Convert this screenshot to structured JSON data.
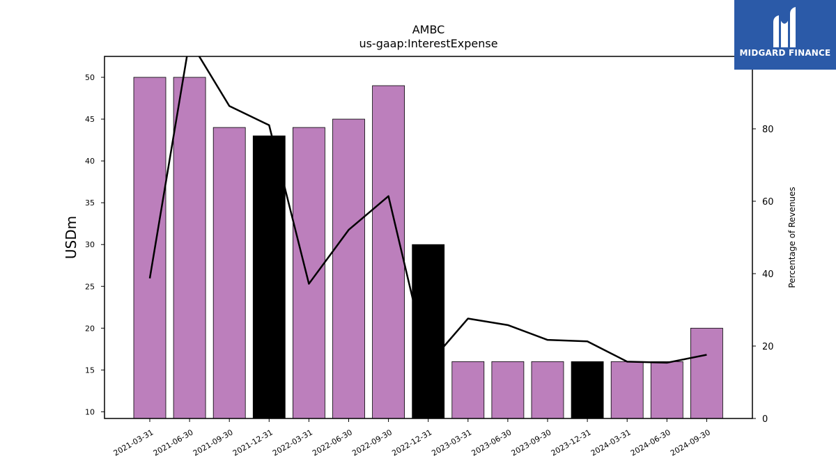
{
  "chart_data": {
    "type": "bar",
    "title": "AMBC",
    "subtitle": "us-gaap:InterestExpense",
    "ylabel": "USDm",
    "y2label": "Percentage of Revenues",
    "ylim": [
      9.2,
      52.5
    ],
    "y2lim": [
      0,
      100
    ],
    "yticks": [
      10,
      15,
      20,
      25,
      30,
      35,
      40,
      45,
      50
    ],
    "y2ticks": [
      0,
      20,
      40,
      60,
      80
    ],
    "categories": [
      "2021-03-31",
      "2021-06-30",
      "2021-09-30",
      "2021-12-31",
      "2022-03-31",
      "2022-06-30",
      "2022-09-30",
      "2022-12-31",
      "2023-03-31",
      "2023-06-30",
      "2023-09-30",
      "2023-12-31",
      "2024-03-31",
      "2024-06-30",
      "2024-09-30"
    ],
    "values": [
      50,
      50,
      44,
      43,
      44,
      45,
      49,
      30,
      16,
      16,
      16,
      16,
      16,
      16,
      20
    ],
    "bar_colors": [
      "#bc7fbc",
      "#bc7fbc",
      "#bc7fbc",
      "#000000",
      "#bc7fbc",
      "#bc7fbc",
      "#bc7fbc",
      "#000000",
      "#bc7fbc",
      "#bc7fbc",
      "#bc7fbc",
      "#000000",
      "#bc7fbc",
      "#bc7fbc",
      "#bc7fbc"
    ],
    "line_series": [
      38.7,
      104.4,
      86.3,
      81.0,
      37.2,
      52.1,
      61.4,
      14.9,
      27.6,
      25.8,
      21.7,
      21.3,
      15.7,
      15.4,
      17.6
    ],
    "grid": false
  },
  "logo": {
    "text": "MIDGARD FINANCE",
    "bg_color": "#2b5aa8"
  }
}
